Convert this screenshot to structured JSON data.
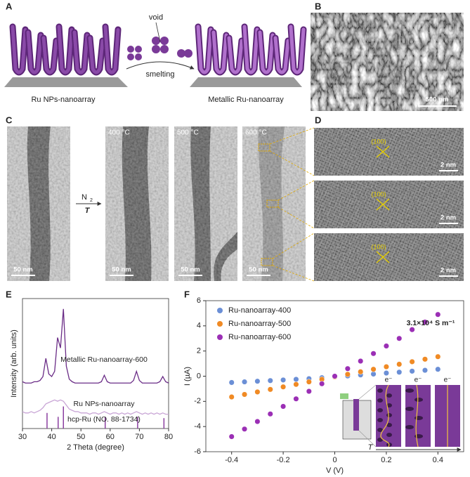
{
  "panel_letters": [
    "A",
    "B",
    "C",
    "D",
    "E",
    "F"
  ],
  "panel_a": {
    "before": "Ru NPs-nanoarray",
    "after": "Metallic Ru-nanoarray",
    "void": "void",
    "process": "smelting"
  },
  "panel_b": {
    "scale_bar": "500 nm"
  },
  "panel_c": {
    "scale_bars": [
      "50 nm",
      "50 nm",
      "50 nm",
      "50 nm"
    ],
    "temperatures": [
      "400 °C",
      "500 °C",
      "600 °C"
    ],
    "gas": "N",
    "gas_subscript": "2",
    "condition": "T"
  },
  "panel_d": {
    "planes": [
      "(100)",
      "(100)",
      "(100)"
    ],
    "scale_bars": [
      "2 nm",
      "2 nm",
      "2 nm"
    ]
  },
  "chart_data": [
    {
      "type": "line",
      "xlabel": "2 Theta (degree)",
      "ylabel": "Intensity (arb. units)",
      "xlim": [
        30,
        80
      ],
      "xticks": [
        30,
        40,
        50,
        60,
        70,
        80
      ],
      "ylim": [
        0,
        100
      ],
      "x": [
        30,
        31,
        32,
        33,
        34,
        35,
        36,
        37,
        38,
        39,
        40,
        41,
        42,
        43,
        44,
        45,
        46,
        47,
        48,
        49,
        50,
        51,
        52,
        53,
        54,
        55,
        56,
        57,
        58,
        59,
        60,
        61,
        62,
        63,
        64,
        65,
        66,
        67,
        68,
        69,
        70,
        71,
        72,
        73,
        74,
        75,
        76,
        77,
        78,
        79,
        80
      ],
      "series": [
        {
          "name": "Metallic Ru-nanoarray-600",
          "color": "#6a2c86",
          "values": [
            36,
            35,
            35,
            35,
            36,
            36,
            37,
            40,
            54,
            42,
            40,
            44,
            70,
            62,
            92,
            48,
            38,
            36,
            35,
            35,
            35,
            35,
            35,
            35,
            35,
            35,
            35,
            36,
            41,
            36,
            35,
            35,
            35,
            35,
            35,
            35,
            35,
            35,
            37,
            44,
            37,
            35,
            35,
            35,
            35,
            35,
            35,
            36,
            40,
            36,
            35
          ]
        },
        {
          "name": "Ru NPs-nanoarray",
          "color": "#c9a6d6",
          "values": [
            13,
            12,
            12,
            13,
            12,
            13,
            14,
            16,
            19,
            20,
            21,
            22,
            21,
            22,
            21,
            18,
            15,
            14,
            13,
            13,
            12,
            12,
            12,
            11,
            12,
            12,
            11,
            12,
            13,
            12,
            11,
            12,
            12,
            11,
            12,
            11,
            12,
            11,
            12,
            13,
            12,
            11,
            12,
            11,
            12,
            11,
            12,
            11,
            12,
            11,
            11
          ]
        },
        {
          "name": "hcp-Ru (NO. 88-1734)",
          "color": "#8b3fa0",
          "style": "stem",
          "x": [
            38.4,
            42.2,
            44.0,
            58.3,
            69.4,
            78.4
          ],
          "values": [
            12,
            9,
            17,
            9,
            9,
            8
          ]
        }
      ]
    },
    {
      "type": "scatter",
      "xlabel": "V (V)",
      "ylabel": "I (µA)",
      "xlim": [
        -0.5,
        0.5
      ],
      "xticks": [
        -0.4,
        -0.2,
        0,
        0.2,
        0.4
      ],
      "ylim": [
        -6,
        6
      ],
      "yticks": [
        -6,
        -4,
        -2,
        0,
        2,
        4,
        6
      ],
      "legend": "upper left",
      "annotation": "3.1×10⁴ S m⁻¹",
      "inset": {
        "electron_labels": [
          "e⁻",
          "e⁻",
          "e⁻"
        ],
        "axis": "T"
      },
      "x": [
        -0.4,
        -0.35,
        -0.3,
        -0.25,
        -0.2,
        -0.15,
        -0.1,
        -0.05,
        0,
        0.05,
        0.1,
        0.15,
        0.2,
        0.25,
        0.3,
        0.35,
        0.4
      ],
      "series": [
        {
          "name": "Ru-nanoarray-400",
          "color": "#6b8fd6",
          "values": [
            -0.5,
            -0.45,
            -0.4,
            -0.35,
            -0.3,
            -0.25,
            -0.2,
            -0.12,
            -0.05,
            0.02,
            0.1,
            0.17,
            0.25,
            0.32,
            0.4,
            0.47,
            0.55
          ]
        },
        {
          "name": "Ru-nanoarray-500",
          "color": "#f08a24",
          "values": [
            -1.65,
            -1.45,
            -1.25,
            -1.05,
            -0.85,
            -0.65,
            -0.45,
            -0.25,
            -0.05,
            0.15,
            0.35,
            0.55,
            0.75,
            0.95,
            1.15,
            1.35,
            1.55
          ]
        },
        {
          "name": "Ru-nanoarray-600",
          "color": "#9b2fb5",
          "values": [
            -4.8,
            -4.2,
            -3.6,
            -3.0,
            -2.4,
            -1.8,
            -1.2,
            -0.6,
            0,
            0.6,
            1.2,
            1.8,
            2.4,
            3.0,
            3.7,
            4.3,
            4.9
          ]
        }
      ]
    }
  ]
}
